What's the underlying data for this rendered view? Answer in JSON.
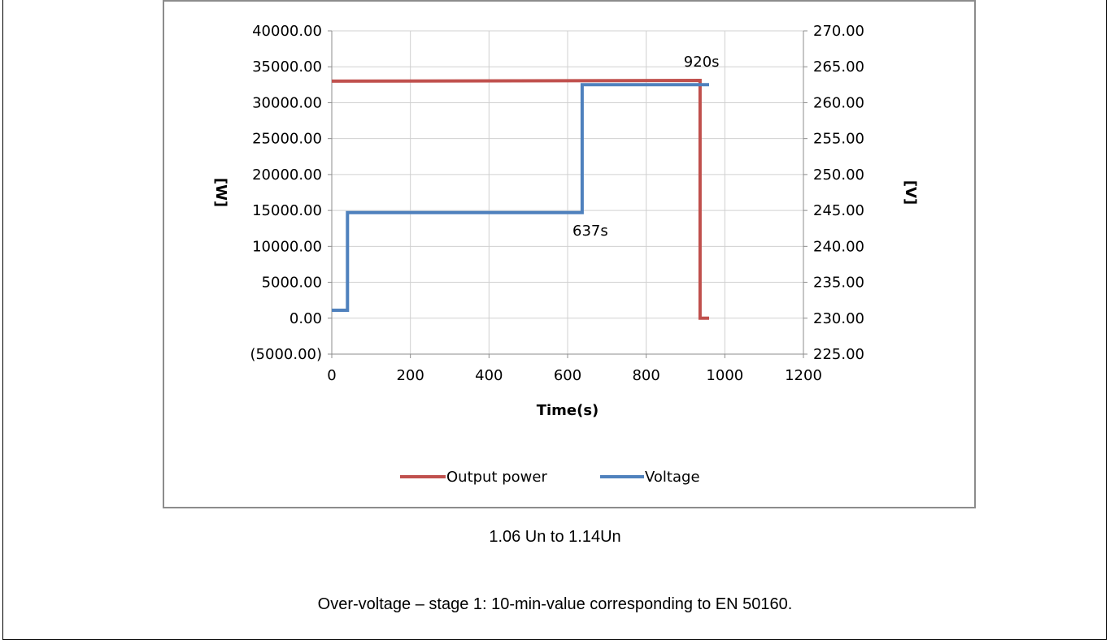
{
  "captions": {
    "range": "1.06 Un to 1.14Un",
    "description": "Over-voltage – stage 1: 10-min-value corresponding to EN 50160."
  },
  "chart_data": {
    "type": "line",
    "xlabel": "Time(s)",
    "ylabel_left": "[W]",
    "ylabel_right": "[V]",
    "xlim": [
      0,
      1200
    ],
    "ylim_left": [
      -5000,
      40000
    ],
    "ylim_right": [
      225,
      270
    ],
    "x_ticks": [
      0,
      200,
      400,
      600,
      800,
      1000,
      1200
    ],
    "x_tick_labels": [
      "0",
      "200",
      "400",
      "600",
      "800",
      "1000",
      "1200"
    ],
    "y_left_ticks": [
      40000,
      35000,
      30000,
      25000,
      20000,
      15000,
      10000,
      5000,
      0,
      -5000
    ],
    "y_left_tick_labels": [
      "40000.00",
      "35000.00",
      "30000.00",
      "25000.00",
      "20000.00",
      "15000.00",
      "10000.00",
      "5000.00",
      "0.00",
      "(5000.00)"
    ],
    "y_right_ticks": [
      270,
      265,
      260,
      255,
      250,
      245,
      240,
      235,
      230,
      225
    ],
    "y_right_tick_labels": [
      "270.00",
      "265.00",
      "260.00",
      "255.00",
      "250.00",
      "245.00",
      "240.00",
      "235.00",
      "230.00",
      "225.00"
    ],
    "negative_label_color": "#ff0000",
    "grid": true,
    "legend_position": "bottom",
    "series": [
      {
        "name": "Output power",
        "axis": "left",
        "color": "#c0504d",
        "points": [
          [
            0,
            33000
          ],
          [
            937,
            33100
          ],
          [
            937,
            0
          ],
          [
            960,
            0
          ]
        ]
      },
      {
        "name": "Voltage",
        "axis": "right",
        "color": "#4f81bd",
        "points": [
          [
            0,
            231.1
          ],
          [
            40,
            231.1
          ],
          [
            40,
            244.7
          ],
          [
            637,
            244.7
          ],
          [
            637,
            262.5
          ],
          [
            960,
            262.5
          ]
        ]
      }
    ],
    "annotations": [
      {
        "text": "920s",
        "x": 920,
        "y_right": 265.0
      },
      {
        "text": "637s",
        "x": 637,
        "y_right": 241.5
      }
    ]
  }
}
